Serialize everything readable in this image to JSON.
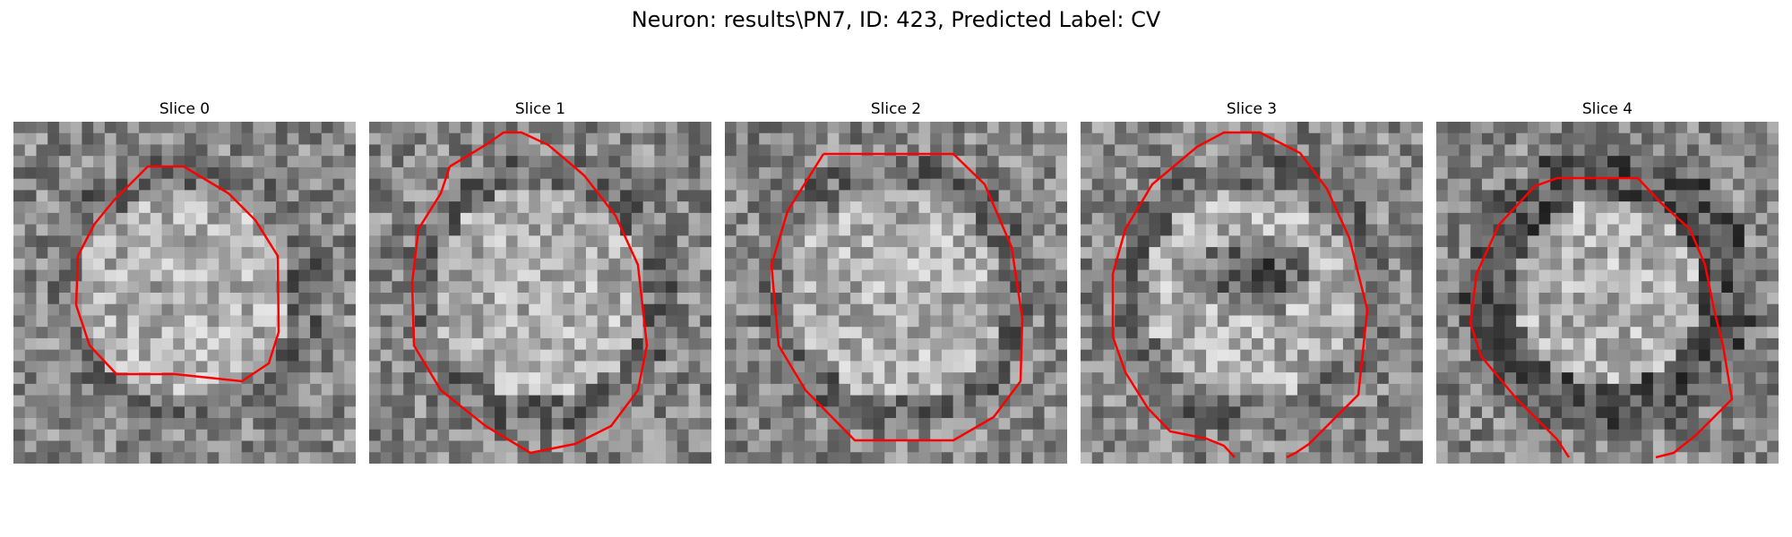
{
  "figure": {
    "title": "Neuron: results\\PN7, ID: 423, Predicted Label: CV",
    "contour_color": "#ff0000",
    "panels": [
      {
        "title": "Slice 0",
        "seed": 11,
        "center_brightness": "bright",
        "image": "grayscale-noise-microscopy",
        "contour_shape": "closed-polygon"
      },
      {
        "title": "Slice 1",
        "seed": 23,
        "center_brightness": "bright",
        "image": "grayscale-noise-microscopy",
        "contour_shape": "closed-polygon"
      },
      {
        "title": "Slice 2",
        "seed": 37,
        "center_brightness": "bright",
        "image": "grayscale-noise-microscopy",
        "contour_shape": "closed-polygon"
      },
      {
        "title": "Slice 3",
        "seed": 41,
        "center_brightness": "bright-with-dark-spot",
        "image": "grayscale-noise-microscopy",
        "contour_shape": "open-polygon"
      },
      {
        "title": "Slice 4",
        "seed": 53,
        "center_brightness": "bright-with-dark-ring",
        "image": "grayscale-noise-microscopy",
        "contour_shape": "open-polygon"
      }
    ]
  }
}
